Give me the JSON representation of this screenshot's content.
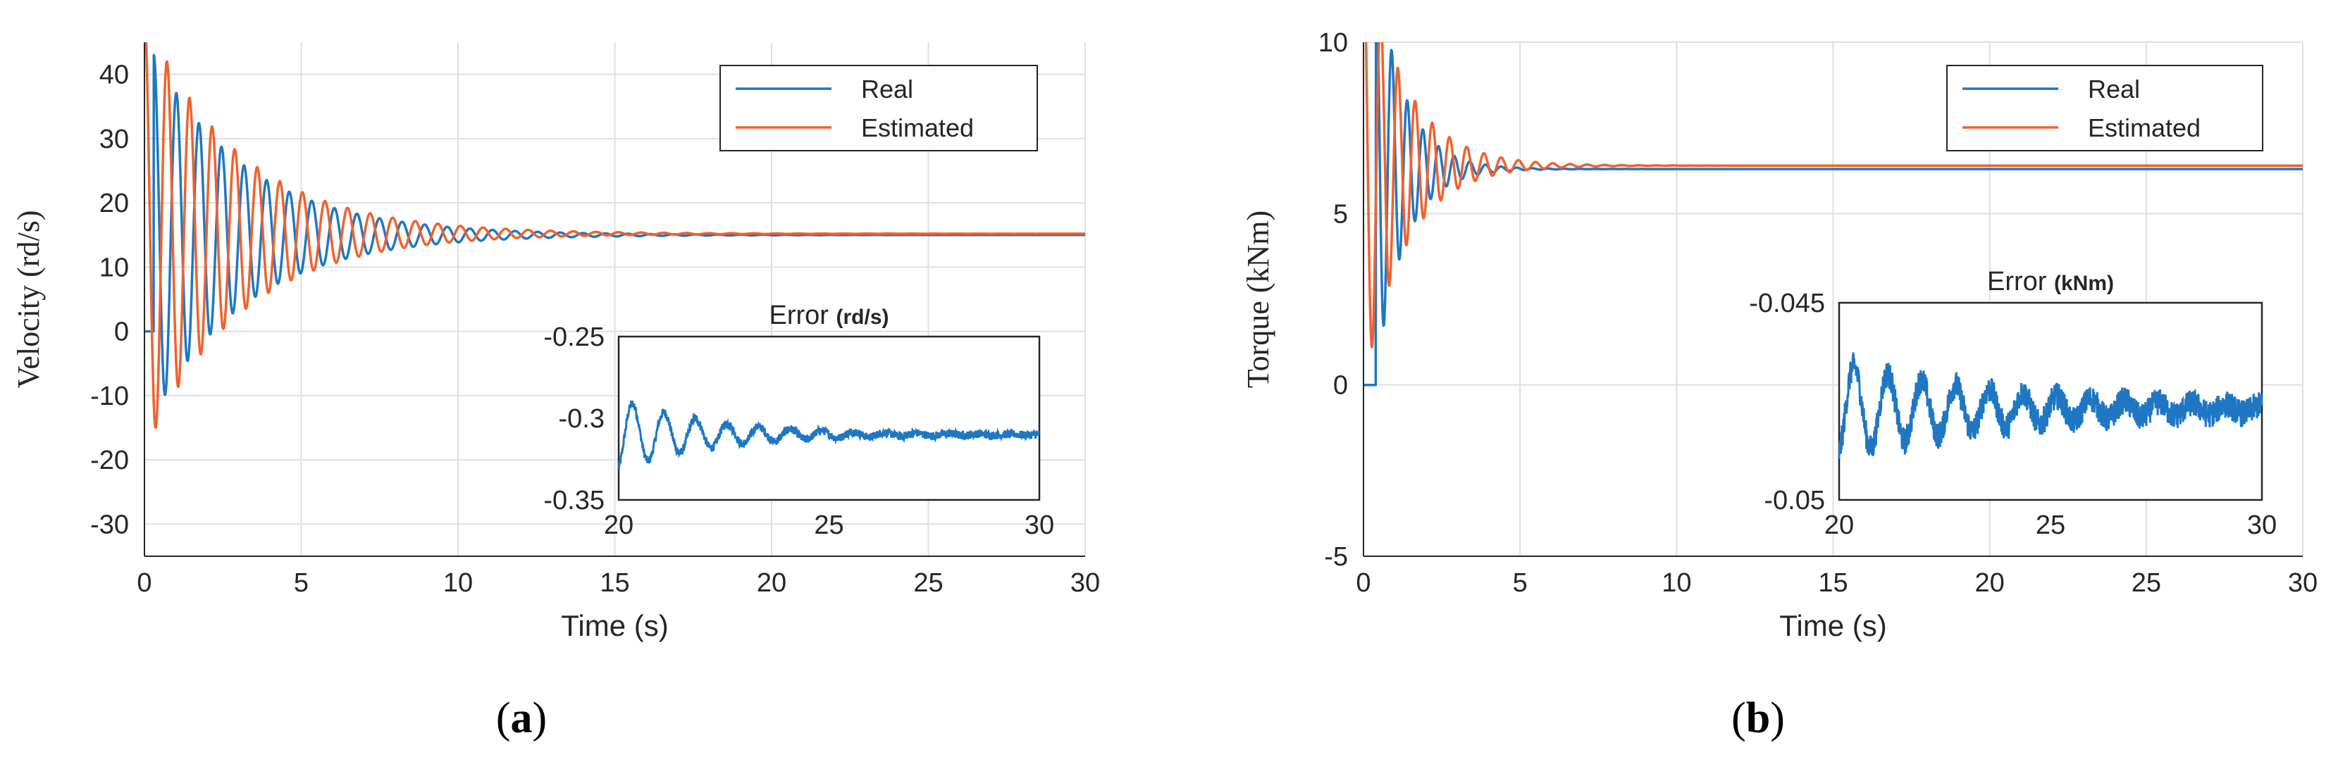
{
  "colors": {
    "real": "#1f77c4",
    "estimated": "#f2612d"
  },
  "chart_data": [
    {
      "type": "line",
      "panel_label": "a",
      "xlabel": "Time  (s)",
      "ylabel": "Velocity (rd/s)",
      "xlim": [
        0,
        30
      ],
      "ylim": [
        -35,
        45
      ],
      "xticks": [
        0,
        5,
        10,
        15,
        20,
        25,
        30
      ],
      "yticks": [
        -30,
        -20,
        -10,
        0,
        10,
        20,
        30,
        40
      ],
      "grid": true,
      "legend_position": "top-right",
      "legend": [
        "Real",
        "Estimated"
      ],
      "series": [
        {
          "name": "Real",
          "type": "damped_oscillation",
          "final": 15,
          "amplitude": 28,
          "decay": 0.33,
          "period": 0.72,
          "start": 0.3
        },
        {
          "name": "Estimated",
          "type": "damped_oscillation",
          "final": 15.2,
          "amplitude": 34,
          "decay": 0.33,
          "period": 0.72,
          "start": 0.0
        }
      ],
      "inset": {
        "title": "Error",
        "unit": "(rd/s)",
        "xlim": [
          20,
          30
        ],
        "ylim": [
          -0.35,
          -0.25
        ],
        "xticks": [
          20,
          25,
          30
        ],
        "yticks": [
          -0.25,
          -0.3,
          -0.35
        ],
        "series": {
          "name": "Error",
          "final": -0.31,
          "amplitude": 0.022,
          "decay": 0.45,
          "period": 0.75,
          "noise": 0.0025
        }
      }
    },
    {
      "type": "line",
      "panel_label": "b",
      "xlabel": "Time  (s)",
      "ylabel": "Torque (kNm)",
      "xlim": [
        0,
        30
      ],
      "ylim": [
        -5,
        10
      ],
      "xticks": [
        0,
        5,
        10,
        15,
        20,
        25,
        30
      ],
      "yticks": [
        -5,
        0,
        5,
        10
      ],
      "grid": true,
      "legend_position": "top-right",
      "legend": [
        "Real",
        "Estimated"
      ],
      "series": [
        {
          "name": "Real",
          "type": "damped_oscillation",
          "final": 6.3,
          "amplitude": 6,
          "decay": 1.1,
          "period": 0.5,
          "start": 0.4
        },
        {
          "name": "Estimated",
          "type": "damped_oscillation",
          "final": 6.4,
          "amplitude": 6.5,
          "decay": 0.75,
          "period": 0.55,
          "start": 0.0
        }
      ],
      "inset": {
        "title": "Error",
        "unit": "(kNm)",
        "xlim": [
          20,
          30
        ],
        "ylim": [
          -0.05,
          -0.045
        ],
        "xticks": [
          20,
          25,
          30
        ],
        "yticks": [
          -0.045,
          -0.05
        ],
        "series": {
          "name": "Error",
          "final": -0.0477,
          "amplitude": 0.0012,
          "decay": 0.25,
          "period": 0.8,
          "noise": 0.00035
        }
      }
    }
  ]
}
